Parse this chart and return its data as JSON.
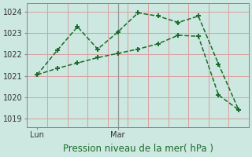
{
  "background_color": "#cce8e0",
  "grid_color_h": "#d8a0a0",
  "grid_color_v": "#d8a0a0",
  "line_color": "#1a6b2a",
  "plot_bg": "#cce8e0",
  "ylabel_ticks": [
    1019,
    1020,
    1021,
    1022,
    1023,
    1024
  ],
  "ylim": [
    1018.6,
    1024.4
  ],
  "xlabel": "Pression niveau de la mer( hPa )",
  "day_labels": [
    "Lun",
    "Mar"
  ],
  "day_positions": [
    0.5,
    4.5
  ],
  "vline_x": 4.5,
  "line1_x": [
    0.5,
    1.5,
    2.5,
    3.5,
    4.5,
    5.5,
    6.5,
    7.5,
    8.5,
    9.5,
    10.5
  ],
  "line1_y": [
    1021.05,
    1022.2,
    1023.3,
    1022.25,
    1023.05,
    1023.95,
    1023.8,
    1023.5,
    1023.8,
    1021.55,
    1019.4
  ],
  "line2_x": [
    0.5,
    1.5,
    2.5,
    3.5,
    4.5,
    5.5,
    6.5,
    7.5,
    8.5,
    9.5,
    10.5
  ],
  "line2_y": [
    1021.05,
    1021.35,
    1021.6,
    1021.85,
    1022.05,
    1022.25,
    1022.5,
    1022.9,
    1022.85,
    1020.1,
    1019.4
  ],
  "xlim": [
    0,
    11
  ],
  "num_v_gridlines": 11,
  "tick_fontsize": 7,
  "xlabel_fontsize": 8.5,
  "xlabel_color": "#1a6b2a"
}
